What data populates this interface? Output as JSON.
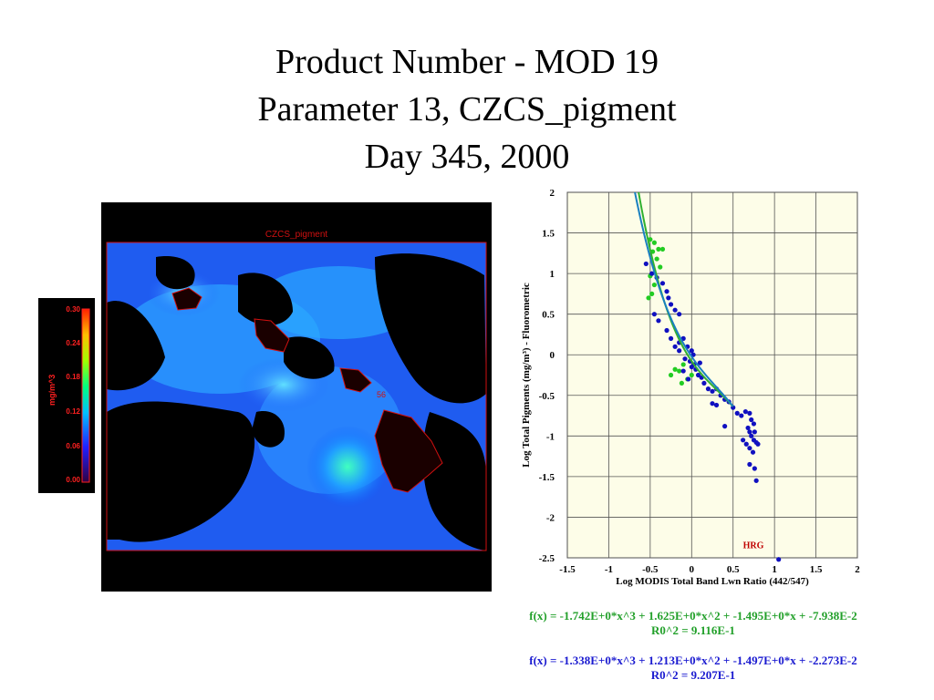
{
  "title": {
    "line1": "Product Number - MOD 19",
    "line2": "Parameter 13, CZCS_pigment",
    "line3": "Day 345, 2000"
  },
  "map": {
    "panel_label": "CZCS_pigment",
    "annotation": "56"
  },
  "colorbar": {
    "unit": "mg/m^3",
    "ticks": [
      "0.30",
      "0.24",
      "0.18",
      "0.12",
      "0.06",
      "0.00"
    ]
  },
  "equations": {
    "green_fit": "f(x) = -1.742E+0*x^3 + 1.625E+0*x^2 + -1.495E+0*x + -7.938E-2",
    "green_r2": "R0^2 = 9.116E-1",
    "blue_fit": "f(x) = -1.338E+0*x^3 + 1.213E+0*x^2 + -1.497E+0*x + -2.273E-2",
    "blue_r2": "R0^2 = 9.207E-1"
  },
  "chart_data": {
    "type": "scatter",
    "xlabel": "Log MODIS Total Band Lwn Ratio (442/547)",
    "ylabel": "Log Total Pigments (mg/m³) - Fluorometric",
    "xlim": [
      -1.5,
      2
    ],
    "ylim": [
      -2.5,
      2
    ],
    "xticks": [
      "-1.5",
      "-1",
      "-0.5",
      "0",
      "0.5",
      "1",
      "1.5",
      "2"
    ],
    "yticks": [
      "2",
      "1.5",
      "1",
      "0.5",
      "0",
      "-0.5",
      "-1",
      "-1.5",
      "-2",
      "-2.5"
    ],
    "grid": true,
    "annotation": "HRG",
    "colors": {
      "green": "#22cc22",
      "blue": "#1010c0",
      "curve_green": "#30b030",
      "curve_blue": "#1a80c0"
    },
    "series": [
      {
        "color": "green",
        "points": [
          [
            -0.5,
            1.42
          ],
          [
            -0.45,
            1.38
          ],
          [
            -0.4,
            1.3
          ],
          [
            -0.35,
            1.3
          ],
          [
            -0.47,
            1.27
          ],
          [
            -0.42,
            1.18
          ],
          [
            -0.38,
            1.08
          ],
          [
            -0.5,
            0.97
          ],
          [
            -0.45,
            0.86
          ],
          [
            -0.48,
            0.75
          ],
          [
            -0.52,
            0.7
          ],
          [
            -0.2,
            -0.18
          ],
          [
            -0.15,
            -0.2
          ],
          [
            -0.1,
            -0.12
          ],
          [
            -0.05,
            -0.3
          ],
          [
            -0.12,
            -0.35
          ],
          [
            0.0,
            -0.25
          ],
          [
            -0.25,
            -0.25
          ]
        ]
      },
      {
        "color": "blue",
        "points": [
          [
            -0.55,
            1.12
          ],
          [
            -0.48,
            1.0
          ],
          [
            -0.42,
            0.95
          ],
          [
            -0.35,
            0.88
          ],
          [
            -0.3,
            0.78
          ],
          [
            -0.28,
            0.7
          ],
          [
            -0.25,
            0.62
          ],
          [
            -0.2,
            0.55
          ],
          [
            -0.15,
            0.5
          ],
          [
            -0.45,
            0.5
          ],
          [
            -0.4,
            0.42
          ],
          [
            -0.3,
            0.3
          ],
          [
            -0.25,
            0.2
          ],
          [
            -0.2,
            0.1
          ],
          [
            -0.15,
            0.05
          ],
          [
            -0.1,
            0.2
          ],
          [
            -0.05,
            0.1
          ],
          [
            0.0,
            0.05
          ],
          [
            0.02,
            0.0
          ],
          [
            -0.08,
            -0.05
          ],
          [
            -0.02,
            -0.08
          ],
          [
            0.03,
            -0.12
          ],
          [
            0.05,
            -0.18
          ],
          [
            -0.1,
            -0.2
          ],
          [
            0.08,
            -0.25
          ],
          [
            0.0,
            -0.15
          ],
          [
            -0.04,
            -0.3
          ],
          [
            0.1,
            -0.1
          ],
          [
            0.12,
            -0.28
          ],
          [
            0.15,
            -0.35
          ],
          [
            0.2,
            -0.42
          ],
          [
            0.25,
            -0.45
          ],
          [
            0.3,
            -0.42
          ],
          [
            0.35,
            -0.5
          ],
          [
            0.4,
            -0.55
          ],
          [
            0.3,
            -0.62
          ],
          [
            0.45,
            -0.58
          ],
          [
            0.5,
            -0.65
          ],
          [
            0.55,
            -0.72
          ],
          [
            0.6,
            -0.75
          ],
          [
            0.65,
            -0.7
          ],
          [
            0.7,
            -0.72
          ],
          [
            0.72,
            -0.8
          ],
          [
            0.75,
            -0.85
          ],
          [
            0.68,
            -0.9
          ],
          [
            0.7,
            -0.95
          ],
          [
            0.72,
            -1.0
          ],
          [
            0.75,
            -1.05
          ],
          [
            0.78,
            -1.08
          ],
          [
            0.76,
            -0.95
          ],
          [
            0.8,
            -1.1
          ],
          [
            0.62,
            -1.05
          ],
          [
            0.66,
            -1.1
          ],
          [
            0.7,
            -1.15
          ],
          [
            0.74,
            -1.2
          ],
          [
            0.7,
            -1.35
          ],
          [
            0.76,
            -1.4
          ],
          [
            0.78,
            -1.55
          ],
          [
            0.4,
            -0.88
          ],
          [
            0.25,
            -0.6
          ],
          [
            -0.15,
            0.15
          ],
          [
            1.05,
            -2.52
          ]
        ]
      }
    ],
    "curves": [
      {
        "color": "green",
        "coefficients": [
          -1.742,
          1.625,
          -1.495,
          -0.07938
        ]
      },
      {
        "color": "blue",
        "coefficients": [
          -1.338,
          1.213,
          -1.497,
          -0.02273
        ]
      }
    ]
  }
}
